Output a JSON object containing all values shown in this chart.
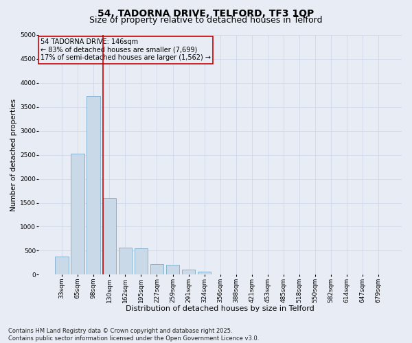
{
  "title_line1": "54, TADORNA DRIVE, TELFORD, TF3 1QP",
  "title_line2": "Size of property relative to detached houses in Telford",
  "xlabel": "Distribution of detached houses by size in Telford",
  "ylabel": "Number of detached properties",
  "categories": [
    "33sqm",
    "65sqm",
    "98sqm",
    "130sqm",
    "162sqm",
    "195sqm",
    "227sqm",
    "259sqm",
    "291sqm",
    "324sqm",
    "356sqm",
    "388sqm",
    "421sqm",
    "453sqm",
    "485sqm",
    "518sqm",
    "550sqm",
    "582sqm",
    "614sqm",
    "647sqm",
    "679sqm"
  ],
  "values": [
    380,
    2520,
    3720,
    1600,
    560,
    550,
    220,
    200,
    105,
    55,
    0,
    0,
    0,
    0,
    0,
    0,
    0,
    0,
    0,
    0,
    0
  ],
  "bar_color": "#c9d9e8",
  "bar_edgecolor": "#7aaac8",
  "grid_color": "#d0d8e8",
  "background_color": "#e8edf5",
  "vline_color": "#cc0000",
  "vline_xindex": 3,
  "annotation_text": "54 TADORNA DRIVE: 146sqm\n← 83% of detached houses are smaller (7,699)\n17% of semi-detached houses are larger (1,562) →",
  "annotation_box_color": "#cc0000",
  "annotation_fontsize": 7,
  "ylim": [
    0,
    5000
  ],
  "yticks": [
    0,
    500,
    1000,
    1500,
    2000,
    2500,
    3000,
    3500,
    4000,
    4500,
    5000
  ],
  "footnote": "Contains HM Land Registry data © Crown copyright and database right 2025.\nContains public sector information licensed under the Open Government Licence v3.0.",
  "title_fontsize": 10,
  "subtitle_fontsize": 9,
  "xlabel_fontsize": 8,
  "ylabel_fontsize": 7.5,
  "tick_fontsize": 6.5,
  "footnote_fontsize": 6
}
